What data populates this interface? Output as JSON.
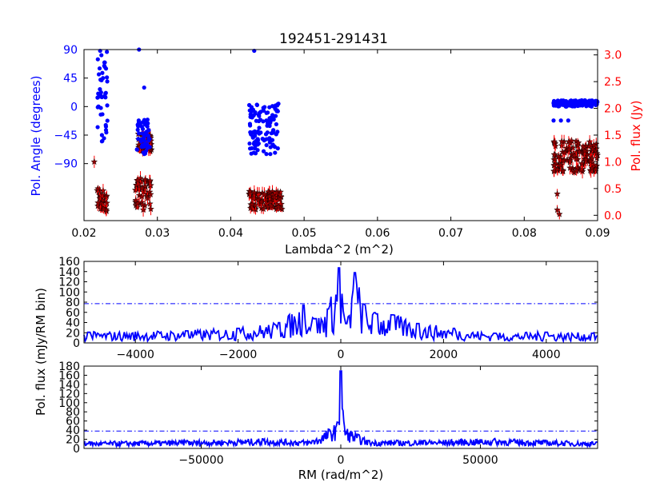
{
  "chart_data": [
    {
      "type": "scatter",
      "title": "192451-291431",
      "xlabel": "Lambda^2 (m^2)",
      "ylabel_left": "Pol. Angle (degrees)",
      "ylabel_right": "Pol. flux (Jy)",
      "xlim": [
        0.02,
        0.09
      ],
      "ylim_left": [
        -180,
        90
      ],
      "ylim_right": [
        -0.1,
        3.1
      ],
      "xticks": [
        "0.02",
        "0.03",
        "0.04",
        "0.05",
        "0.06",
        "0.07",
        "0.08",
        "0.09"
      ],
      "yticks_left": [
        "90",
        "45",
        "0",
        "-45",
        "-90"
      ],
      "yticks_right": [
        "0.0",
        "0.5",
        "1.0",
        "1.5",
        "2.0",
        "2.5",
        "3.0"
      ],
      "colors": {
        "angle": "#0000ff",
        "flux_marker": "#8b0000",
        "flux_error": "#ff0000",
        "left_axis": "#0000ff",
        "right_axis": "#ff0000"
      },
      "series": [
        {
          "marker": "circle",
          "axis": "left",
          "clusters": [
            {
              "x": [
                0.0218,
                0.0232
              ],
              "y": [
                -60,
                90
              ]
            },
            {
              "x": [
                0.0272,
                0.029
              ],
              "y": [
                -75,
                -20
              ]
            },
            {
              "x": [
                0.0425,
                0.0465
              ],
              "y": [
                -75,
                5
              ]
            },
            {
              "x": [
                0.084,
                0.09
              ],
              "y": [
                0,
                10
              ]
            }
          ],
          "outliers": [
            {
              "x": 0.0222,
              "y": 88
            },
            {
              "x": 0.023,
              "y": 60
            },
            {
              "x": 0.0275,
              "y": 90
            },
            {
              "x": 0.0282,
              "y": 30
            },
            {
              "x": 0.0432,
              "y": 88
            },
            {
              "x": 0.085,
              "y": -22
            },
            {
              "x": 0.086,
              "y": -22
            },
            {
              "x": 0.084,
              "y": -22
            }
          ]
        },
        {
          "marker": "star",
          "axis": "right",
          "error_bars": true,
          "clusters": [
            {
              "x": [
                0.0218,
                0.0232
              ],
              "y": [
                0.05,
                0.5
              ]
            },
            {
              "x": [
                0.027,
                0.0292
              ],
              "y": [
                0.1,
                0.7
              ]
            },
            {
              "x": [
                0.0272,
                0.0292
              ],
              "y": [
                1.2,
                1.55
              ]
            },
            {
              "x": [
                0.0425,
                0.047
              ],
              "y": [
                0.1,
                0.45
              ]
            },
            {
              "x": [
                0.084,
                0.09
              ],
              "y": [
                0.8,
                1.4
              ]
            }
          ],
          "outliers": [
            {
              "x": 0.0214,
              "y": 1.0
            },
            {
              "x": 0.0845,
              "y": 0.1
            },
            {
              "x": 0.0848,
              "y": 0.02
            },
            {
              "x": 0.0845,
              "y": 0.4
            }
          ]
        }
      ]
    },
    {
      "type": "line",
      "xlim": [
        -5000,
        5000
      ],
      "ylim": [
        0,
        160
      ],
      "xticks": [
        "−4000",
        "−2000",
        "0",
        "2000",
        "4000"
      ],
      "yticks": [
        "0",
        "20",
        "40",
        "60",
        "80",
        "100",
        "120",
        "140",
        "160"
      ],
      "threshold": 77,
      "color": "#0000ff",
      "peaks": [
        {
          "x": -4900,
          "y": 22
        },
        {
          "x": -3000,
          "y": 25
        },
        {
          "x": -2000,
          "y": 30
        },
        {
          "x": -1200,
          "y": 42
        },
        {
          "x": -720,
          "y": 78
        },
        {
          "x": -500,
          "y": 50
        },
        {
          "x": -250,
          "y": 70
        },
        {
          "x": -30,
          "y": 155
        },
        {
          "x": 120,
          "y": 40
        },
        {
          "x": 270,
          "y": 145
        },
        {
          "x": 460,
          "y": 78
        },
        {
          "x": 700,
          "y": 60
        },
        {
          "x": 1000,
          "y": 58
        },
        {
          "x": 1500,
          "y": 40
        },
        {
          "x": 2200,
          "y": 30
        },
        {
          "x": 3000,
          "y": 20
        },
        {
          "x": 4000,
          "y": 22
        },
        {
          "x": 4900,
          "y": 20
        }
      ]
    },
    {
      "type": "line",
      "xlabel": "RM (rad/m^2)",
      "xlim": [
        -92000,
        92000
      ],
      "ylim": [
        0,
        180
      ],
      "xticks": [
        "−50000",
        "0",
        "50000"
      ],
      "yticks": [
        "0",
        "20",
        "40",
        "60",
        "80",
        "100",
        "120",
        "140",
        "160",
        "180"
      ],
      "threshold": 38,
      "color": "#0000ff",
      "peaks": [
        {
          "x": -90000,
          "y": 15
        },
        {
          "x": -55000,
          "y": 18
        },
        {
          "x": -28000,
          "y": 22
        },
        {
          "x": -10000,
          "y": 18
        },
        {
          "x": -1000,
          "y": 60
        },
        {
          "x": 0,
          "y": 178
        },
        {
          "x": 1200,
          "y": 50
        },
        {
          "x": 10000,
          "y": 18
        },
        {
          "x": 30000,
          "y": 18
        },
        {
          "x": 55000,
          "y": 22
        },
        {
          "x": 90000,
          "y": 15
        }
      ]
    }
  ],
  "shared_ylabel": "Pol. flux (mJy/RM bin)"
}
